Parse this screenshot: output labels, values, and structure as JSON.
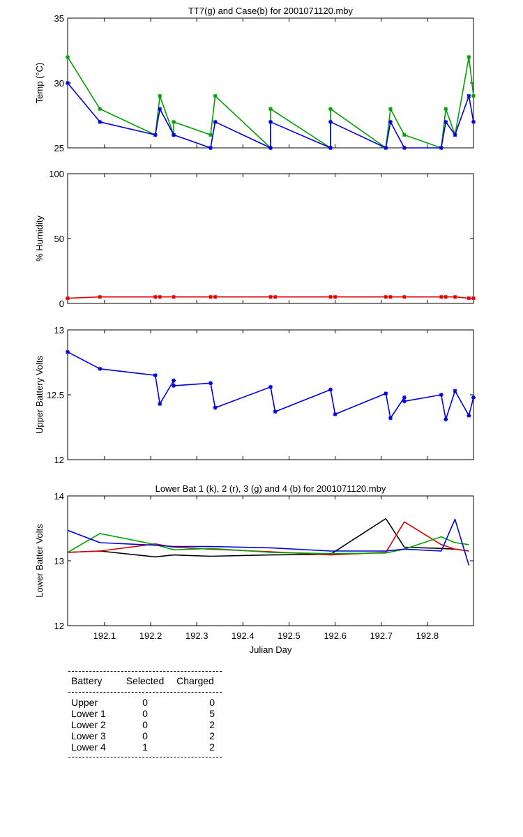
{
  "chart_data": [
    {
      "type": "line",
      "title": "TT7(g) and Case(b) for 2001071120.mby",
      "xlabel": "",
      "ylabel": "Temp  (°C)",
      "xlim": [
        192.02,
        192.9
      ],
      "ylim": [
        25,
        35
      ],
      "yticks": [
        "25",
        "30",
        "35"
      ],
      "series": [
        {
          "name": "TT7",
          "color": "#00a000",
          "x": [
            192.02,
            192.09,
            192.21,
            192.22,
            192.25,
            192.25,
            192.33,
            192.34,
            192.46,
            192.46,
            192.59,
            192.59,
            192.71,
            192.72,
            192.75,
            192.83,
            192.84,
            192.86,
            192.89,
            192.9
          ],
          "y": [
            32,
            28,
            26,
            29,
            26,
            27,
            26,
            29,
            25,
            28,
            25,
            28,
            25,
            28,
            26,
            25,
            28,
            26,
            32,
            29
          ]
        },
        {
          "name": "Case",
          "color": "#0000dd",
          "x": [
            192.02,
            192.09,
            192.21,
            192.22,
            192.25,
            192.25,
            192.33,
            192.34,
            192.46,
            192.46,
            192.59,
            192.59,
            192.71,
            192.72,
            192.75,
            192.83,
            192.84,
            192.86,
            192.89,
            192.9
          ],
          "y": [
            30,
            27,
            26,
            28,
            26,
            26,
            25,
            27,
            25,
            27,
            25,
            27,
            25,
            27,
            25,
            25,
            27,
            26,
            29,
            27
          ]
        }
      ]
    },
    {
      "type": "line",
      "title": "",
      "xlabel": "",
      "ylabel": "% Humidity",
      "xlim": [
        192.02,
        192.9
      ],
      "ylim": [
        0,
        100
      ],
      "yticks": [
        "0",
        "50",
        "100"
      ],
      "series": [
        {
          "name": "Humidity",
          "color": "#dd0000",
          "x": [
            192.02,
            192.09,
            192.21,
            192.22,
            192.25,
            192.33,
            192.34,
            192.46,
            192.47,
            192.59,
            192.6,
            192.71,
            192.72,
            192.75,
            192.83,
            192.84,
            192.86,
            192.89,
            192.9
          ],
          "y": [
            4,
            5,
            5,
            5,
            5,
            5,
            5,
            5,
            5,
            5,
            5,
            5,
            5,
            5,
            5,
            5,
            5,
            4,
            4
          ]
        }
      ]
    },
    {
      "type": "line",
      "title": "",
      "xlabel": "",
      "ylabel": "Upper Battery Volts",
      "xlim": [
        192.02,
        192.9
      ],
      "ylim": [
        12,
        13
      ],
      "yticks": [
        "12",
        "12.5",
        "13"
      ],
      "series": [
        {
          "name": "Upper",
          "color": "#0000dd",
          "x": [
            192.02,
            192.09,
            192.21,
            192.22,
            192.25,
            192.25,
            192.33,
            192.34,
            192.46,
            192.47,
            192.59,
            192.6,
            192.71,
            192.72,
            192.75,
            192.75,
            192.83,
            192.84,
            192.86,
            192.89,
            192.9
          ],
          "y": [
            12.83,
            12.7,
            12.65,
            12.43,
            12.61,
            12.57,
            12.59,
            12.4,
            12.56,
            12.37,
            12.54,
            12.35,
            12.51,
            12.32,
            12.48,
            12.45,
            12.5,
            12.31,
            12.53,
            12.34,
            12.48
          ]
        }
      ]
    },
    {
      "type": "line",
      "title": "Lower Bat 1 (k), 2 (r), 3 (g) and 4 (b) for 2001071120.mby",
      "xlabel": "Julian Day",
      "ylabel": "Lower Batter Volts",
      "xlim": [
        192.02,
        192.9
      ],
      "ylim": [
        12,
        14
      ],
      "yticks": [
        "12",
        "13",
        "14"
      ],
      "xticks": [
        "192.1",
        "192.2",
        "192.3",
        "192.4",
        "192.5",
        "192.6",
        "192.7",
        "192.8"
      ],
      "series": [
        {
          "name": "Lower 1",
          "color": "#000000",
          "x": [
            192.02,
            192.09,
            192.21,
            192.25,
            192.33,
            192.46,
            192.59,
            192.71,
            192.75,
            192.83,
            192.86,
            192.89
          ],
          "y": [
            13.13,
            13.15,
            13.06,
            13.09,
            13.07,
            13.09,
            13.1,
            13.65,
            13.21,
            13.19,
            13.18,
            13.15
          ]
        },
        {
          "name": "Lower 2",
          "color": "#dd0000",
          "x": [
            192.02,
            192.09,
            192.21,
            192.25,
            192.33,
            192.46,
            192.59,
            192.71,
            192.75,
            192.83,
            192.86,
            192.89
          ],
          "y": [
            13.13,
            13.15,
            13.26,
            13.21,
            13.18,
            13.14,
            13.09,
            13.13,
            13.6,
            13.25,
            13.18,
            13.15
          ]
        },
        {
          "name": "Lower 3",
          "color": "#00a000",
          "x": [
            192.02,
            192.09,
            192.21,
            192.25,
            192.33,
            192.46,
            192.59,
            192.71,
            192.75,
            192.83,
            192.86,
            192.89
          ],
          "y": [
            13.13,
            13.42,
            13.25,
            13.17,
            13.19,
            13.13,
            13.11,
            13.12,
            13.18,
            13.37,
            13.28,
            13.25
          ]
        },
        {
          "name": "Lower 4",
          "color": "#0000dd",
          "x": [
            192.02,
            192.09,
            192.21,
            192.25,
            192.33,
            192.46,
            192.59,
            192.71,
            192.75,
            192.83,
            192.86,
            192.89
          ],
          "y": [
            13.47,
            13.28,
            13.24,
            13.22,
            13.22,
            13.2,
            13.15,
            13.15,
            13.18,
            13.15,
            13.64,
            12.93
          ]
        }
      ]
    }
  ],
  "table": {
    "headers": [
      "Battery",
      "Selected",
      "Charged"
    ],
    "rows": [
      [
        "Upper",
        "0",
        "0"
      ],
      [
        "Lower 1",
        "0",
        "5"
      ],
      [
        "Lower 2",
        "0",
        "2"
      ],
      [
        "Lower 3",
        "0",
        "2"
      ],
      [
        "Lower 4",
        "1",
        "2"
      ]
    ]
  }
}
